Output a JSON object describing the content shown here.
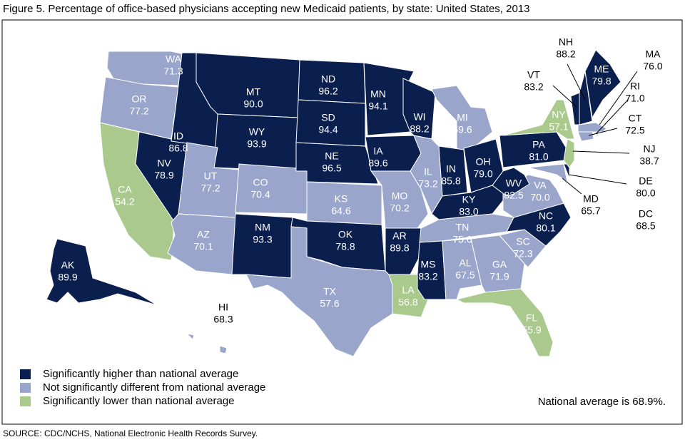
{
  "title": "Figure 5. Percentage of office-based physicians accepting new Medicaid patients, by state: United States, 2013",
  "legend": [
    {
      "label": "Significantly higher than national average",
      "color": "#0b1f4f"
    },
    {
      "label": "Not significantly different from national average",
      "color": "#9aa5cb"
    },
    {
      "label": "Significantly lower than national average",
      "color": "#a9c98d"
    }
  ],
  "states": [
    {
      "abbr": "WA",
      "value": "71.3",
      "category": 1
    },
    {
      "abbr": "OR",
      "value": "77.2",
      "category": 1
    },
    {
      "abbr": "CA",
      "value": "54.2",
      "category": 2
    },
    {
      "abbr": "NV",
      "value": "78.9",
      "category": 0
    },
    {
      "abbr": "ID",
      "value": "86.8",
      "category": 0
    },
    {
      "abbr": "MT",
      "value": "90.0",
      "category": 0
    },
    {
      "abbr": "WY",
      "value": "93.9",
      "category": 0
    },
    {
      "abbr": "UT",
      "value": "77.2",
      "category": 1
    },
    {
      "abbr": "CO",
      "value": "70.4",
      "category": 1
    },
    {
      "abbr": "AZ",
      "value": "70.1",
      "category": 1
    },
    {
      "abbr": "NM",
      "value": "93.3",
      "category": 0
    },
    {
      "abbr": "ND",
      "value": "96.2",
      "category": 0
    },
    {
      "abbr": "SD",
      "value": "94.4",
      "category": 0
    },
    {
      "abbr": "NE",
      "value": "96.5",
      "category": 0
    },
    {
      "abbr": "KS",
      "value": "64.6",
      "category": 1
    },
    {
      "abbr": "OK",
      "value": "78.8",
      "category": 0
    },
    {
      "abbr": "TX",
      "value": "57.6",
      "category": 1
    },
    {
      "abbr": "MN",
      "value": "94.1",
      "category": 0
    },
    {
      "abbr": "IA",
      "value": "89.6",
      "category": 0
    },
    {
      "abbr": "MO",
      "value": "70.2",
      "category": 1
    },
    {
      "abbr": "AR",
      "value": "89.8",
      "category": 0
    },
    {
      "abbr": "LA",
      "value": "56.8",
      "category": 2
    },
    {
      "abbr": "WI",
      "value": "88.2",
      "category": 0
    },
    {
      "abbr": "IL",
      "value": "73.2",
      "category": 1
    },
    {
      "abbr": "MI",
      "value": "69.6",
      "category": 1
    },
    {
      "abbr": "IN",
      "value": "85.8",
      "category": 0
    },
    {
      "abbr": "OH",
      "value": "79.0",
      "category": 0
    },
    {
      "abbr": "KY",
      "value": "83.0",
      "category": 0
    },
    {
      "abbr": "TN",
      "value": "75.6",
      "category": 1
    },
    {
      "abbr": "MS",
      "value": "83.2",
      "category": 0
    },
    {
      "abbr": "AL",
      "value": "67.5",
      "category": 1
    },
    {
      "abbr": "GA",
      "value": "71.9",
      "category": 1
    },
    {
      "abbr": "FL",
      "value": "55.9",
      "category": 2
    },
    {
      "abbr": "SC",
      "value": "72.3",
      "category": 1
    },
    {
      "abbr": "NC",
      "value": "80.1",
      "category": 0
    },
    {
      "abbr": "VA",
      "value": "70.0",
      "category": 1
    },
    {
      "abbr": "WV",
      "value": "82.5",
      "category": 0
    },
    {
      "abbr": "MD",
      "value": "65.7",
      "category": 1
    },
    {
      "abbr": "DE",
      "value": "80.0",
      "category": 0
    },
    {
      "abbr": "PA",
      "value": "81.0",
      "category": 0
    },
    {
      "abbr": "NJ",
      "value": "38.7",
      "category": 2
    },
    {
      "abbr": "NY",
      "value": "57.1",
      "category": 2
    },
    {
      "abbr": "CT",
      "value": "72.5",
      "category": 1
    },
    {
      "abbr": "RI",
      "value": "71.0",
      "category": 1
    },
    {
      "abbr": "MA",
      "value": "76.0",
      "category": 1
    },
    {
      "abbr": "VT",
      "value": "83.2",
      "category": 0
    },
    {
      "abbr": "NH",
      "value": "88.2",
      "category": 0
    },
    {
      "abbr": "ME",
      "value": "79.8",
      "category": 0
    },
    {
      "abbr": "AK",
      "value": "89.9",
      "category": 0
    },
    {
      "abbr": "HI",
      "value": "68.3",
      "category": 1
    },
    {
      "abbr": "DC",
      "value": "68.5",
      "category": 1
    }
  ],
  "note": "National average is 68.9%.",
  "source": "SOURCE: CDC/NCHS, National Electronic Health Records Survey."
}
